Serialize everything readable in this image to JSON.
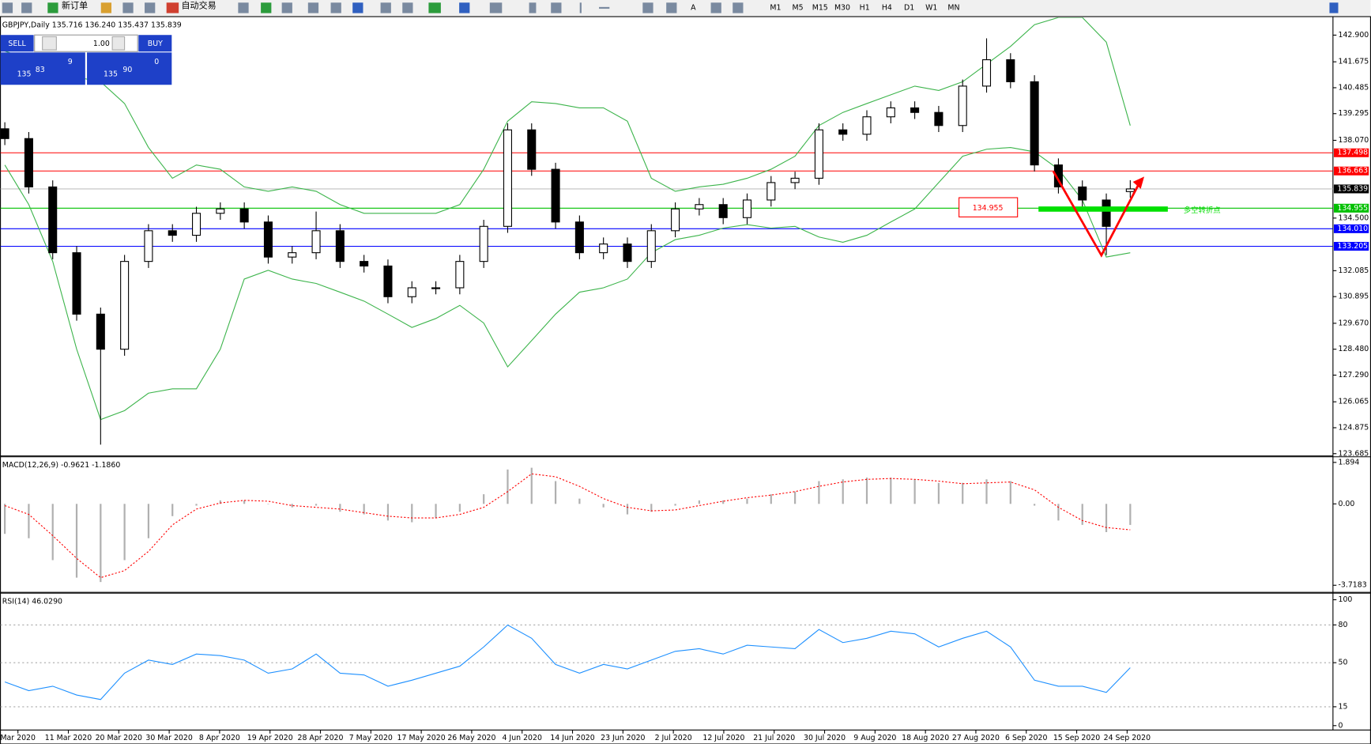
{
  "toolbar": {
    "new_order": "新订单",
    "auto_trading": "自动交易",
    "timeframes": [
      "M1",
      "M5",
      "M15",
      "M30",
      "H1",
      "H4",
      "D1",
      "W1",
      "MN"
    ]
  },
  "trade_panel": {
    "sell": "SELL",
    "buy": "BUY",
    "lot": "1.00",
    "sell_price": [
      "135",
      "83",
      "9"
    ],
    "buy_price": [
      "135",
      "90",
      "0"
    ]
  },
  "chart_data": [
    {
      "type": "candlestick",
      "title": "GBPJPY,Daily  135.716 136.240 135.437 135.839",
      "ylim": [
        123.6,
        143.71
      ],
      "yticks": [
        {
          "value": 142.9,
          "label": "142.900"
        },
        141.675,
        140.485,
        139.295,
        {
          "value": 138.07,
          "label": "138.070"
        },
        {
          "value": 134.5,
          "label": "134.500"
        },
        132.085,
        130.895,
        {
          "value": 129.67,
          "label": "129.670"
        },
        {
          "value": 128.48,
          "label": "128.480"
        },
        {
          "value": 127.29,
          "label": "127.290"
        },
        126.065,
        124.875,
        123.685
      ],
      "open": [
        138.6,
        138.15,
        135.93,
        132.91,
        130.09,
        128.48,
        132.51,
        133.92,
        133.71,
        134.72,
        134.92,
        134.32,
        132.71,
        132.91,
        133.92,
        132.51,
        132.3,
        130.89,
        131.3,
        131.3,
        132.51,
        134.12,
        138.55,
        136.74,
        134.32,
        132.91,
        133.31,
        132.51,
        133.92,
        134.92,
        135.12,
        134.52,
        135.33,
        136.13,
        136.33,
        138.55,
        138.35,
        139.15,
        139.56,
        139.35,
        138.75,
        140.56,
        141.77,
        140.76,
        136.94,
        135.93,
        135.33,
        135.716
      ],
      "high": [
        138.9,
        138.45,
        136.23,
        133.21,
        130.39,
        132.81,
        134.22,
        134.22,
        135.02,
        135.22,
        135.22,
        134.62,
        133.21,
        134.8,
        134.22,
        132.81,
        132.6,
        131.6,
        131.6,
        132.81,
        134.42,
        138.85,
        138.85,
        137.04,
        134.62,
        133.61,
        133.61,
        134.22,
        135.22,
        135.42,
        135.42,
        135.63,
        136.43,
        136.63,
        138.85,
        138.85,
        139.45,
        139.86,
        139.86,
        139.65,
        140.86,
        142.75,
        142.07,
        141.06,
        137.24,
        136.23,
        135.63,
        136.24
      ],
      "low": [
        137.85,
        135.63,
        132.61,
        129.79,
        124.1,
        128.18,
        132.21,
        133.41,
        133.41,
        134.42,
        134.02,
        132.41,
        132.41,
        132.61,
        132.21,
        132.0,
        130.59,
        130.59,
        131.0,
        131.0,
        132.21,
        133.82,
        136.44,
        134.02,
        132.61,
        132.61,
        132.21,
        132.21,
        133.62,
        134.62,
        134.22,
        134.22,
        135.03,
        135.83,
        136.03,
        138.05,
        138.05,
        138.85,
        139.05,
        138.45,
        138.45,
        140.26,
        140.46,
        136.64,
        135.63,
        135.03,
        132.8,
        135.437
      ],
      "close": [
        138.15,
        135.93,
        132.91,
        130.09,
        128.48,
        132.51,
        133.92,
        133.71,
        134.72,
        134.92,
        134.32,
        132.71,
        132.91,
        133.92,
        132.51,
        132.3,
        130.89,
        131.3,
        131.3,
        132.51,
        134.12,
        138.55,
        136.74,
        134.32,
        132.91,
        133.31,
        132.51,
        133.92,
        134.92,
        135.12,
        134.52,
        135.33,
        136.13,
        136.33,
        138.55,
        138.35,
        139.15,
        139.56,
        139.35,
        138.75,
        140.56,
        141.77,
        140.76,
        136.94,
        135.93,
        135.33,
        134.12,
        135.839
      ],
      "band_color": "#3cb44b",
      "upper_band": [
        142.17,
        141.77,
        141.37,
        140.97,
        140.76,
        139.76,
        137.74,
        136.33,
        136.94,
        136.74,
        135.93,
        135.73,
        135.93,
        135.73,
        135.12,
        134.72,
        134.72,
        134.72,
        134.72,
        135.12,
        136.74,
        138.95,
        139.84,
        139.76,
        139.56,
        139.56,
        138.95,
        136.33,
        135.73,
        135.93,
        136.05,
        136.33,
        136.74,
        137.34,
        138.75,
        139.35,
        139.76,
        140.16,
        140.56,
        140.36,
        140.76,
        141.57,
        142.38,
        143.38,
        143.71,
        143.71,
        142.58,
        138.75
      ],
      "lower_band": [
        136.94,
        135.12,
        132.51,
        128.48,
        125.25,
        125.66,
        126.46,
        126.66,
        126.66,
        128.48,
        131.7,
        132.1,
        131.7,
        131.5,
        131.1,
        130.69,
        130.09,
        129.48,
        129.89,
        130.49,
        129.68,
        127.67,
        128.88,
        130.09,
        131.1,
        131.3,
        131.7,
        132.91,
        133.51,
        133.71,
        134.04,
        134.2,
        134.04,
        134.12,
        133.63,
        133.39,
        133.71,
        134.32,
        134.92,
        136.13,
        137.34,
        137.66,
        137.74,
        137.54,
        136.74,
        135.33,
        132.71,
        132.91
      ],
      "hlines": [
        {
          "value": 137.498,
          "color": "#ff0000",
          "box": "#ff0000"
        },
        {
          "value": 136.663,
          "color": "#ff0000",
          "box": "#ff0000"
        },
        {
          "value": 135.839,
          "color": "#c0c0c0",
          "box": "#000000"
        },
        {
          "value": 134.955,
          "color": "#00c000",
          "box": "#00c000"
        },
        {
          "value": 134.01,
          "label": "134.010",
          "color": "#0000ff",
          "box": "#0000ff"
        },
        {
          "value": 133.205,
          "color": "#0000ff",
          "box": "#0000ff"
        }
      ],
      "annotations": [
        {
          "text": "134.955",
          "color": "#ff0000"
        },
        {
          "text": "多空转折点",
          "color": "#00dd00"
        }
      ]
    },
    {
      "type": "macd",
      "title": "MACD(12,26,9) -0.9621 -1.1860",
      "ylim": [
        -4.02,
        2.13
      ],
      "yticks": [
        1.894,
        {
          "value": 0,
          "label": "0.00"
        },
        -3.7183
      ],
      "histogram_color": "#b0b0b0",
      "signal_color": "#ff0000",
      "histogram": [
        -1.37,
        -1.57,
        -2.57,
        -3.37,
        -3.57,
        -2.57,
        -1.57,
        -0.56,
        -0.08,
        0.16,
        0.16,
        0,
        -0.16,
        -0.08,
        -0.36,
        -0.48,
        -0.76,
        -0.84,
        -0.64,
        -0.36,
        0.44,
        1.57,
        1.65,
        1.04,
        0.24,
        -0.16,
        -0.48,
        -0.36,
        -0.08,
        0.16,
        0.16,
        0.24,
        0.44,
        0.56,
        1.04,
        1.12,
        1.2,
        1.2,
        1.12,
        0.96,
        0.96,
        1.12,
        1.04,
        -0.08,
        -0.76,
        -0.96,
        -1.29,
        -0.9621
      ],
      "signal": [
        -0.08,
        -0.48,
        -1.45,
        -2.49,
        -3.37,
        -3.05,
        -2.17,
        -0.96,
        -0.24,
        0.04,
        0.16,
        0.12,
        -0.08,
        -0.16,
        -0.24,
        -0.4,
        -0.56,
        -0.64,
        -0.64,
        -0.48,
        -0.16,
        0.56,
        1.37,
        1.24,
        0.8,
        0.24,
        -0.16,
        -0.32,
        -0.28,
        -0.08,
        0.12,
        0.28,
        0.4,
        0.56,
        0.8,
        1.0,
        1.12,
        1.16,
        1.12,
        1.04,
        0.92,
        0.96,
        1.0,
        0.64,
        -0.16,
        -0.76,
        -1.08,
        -1.186
      ]
    },
    {
      "type": "rsi",
      "title": "RSI(14) 46.0290",
      "ylim": [
        -3.47,
        104.86
      ],
      "yticks": [
        100,
        80,
        50,
        15,
        0
      ],
      "color": "#1e90ff",
      "values": [
        34.7,
        27.8,
        31.3,
        24.3,
        20.8,
        41.7,
        52.1,
        48.6,
        56.9,
        55.6,
        52.1,
        41.7,
        45.1,
        56.9,
        41.7,
        40.3,
        31.3,
        36.1,
        41.7,
        47.2,
        62.5,
        79.9,
        69.4,
        48.6,
        41.7,
        48.6,
        45.1,
        52.1,
        59.0,
        61.1,
        56.9,
        63.9,
        62.5,
        61.1,
        76.4,
        66.0,
        69.4,
        75.0,
        72.9,
        62.5,
        69.4,
        75.0,
        62.5,
        36.1,
        31.3,
        31.3,
        26.4,
        46.029
      ],
      "xtick_labels": [
        "Mar 2020",
        "11 Mar 2020",
        "20 Mar 2020",
        "30 Mar 2020",
        "8 Apr 2020",
        "19 Apr 2020",
        "28 Apr 2020",
        "7 May 2020",
        "17 May 2020",
        "26 May 2020",
        "4 Jun 2020",
        "14 Jun 2020",
        "23 Jun 2020",
        "2 Jul 2020",
        "12 Jul 2020",
        "21 Jul 2020",
        "30 Jul 2020",
        "9 Aug 2020",
        "18 Aug 2020",
        "27 Aug 2020",
        "6 Sep 2020",
        "15 Sep 2020",
        "24 Sep 2020"
      ]
    }
  ]
}
